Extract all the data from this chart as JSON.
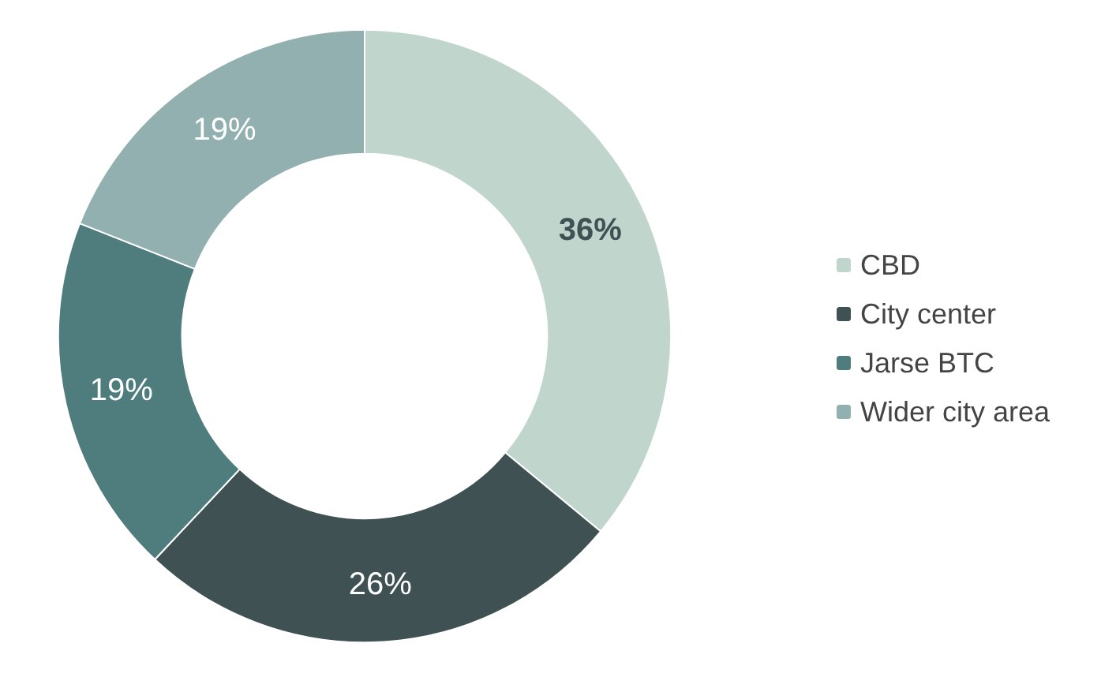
{
  "chart_data": {
    "type": "donut",
    "categories": [
      "CBD",
      "City center",
      "Jarse BTC",
      "Wider city area"
    ],
    "values": [
      36,
      26,
      19,
      19
    ],
    "colors": [
      "#c0d5cc",
      "#3f5153",
      "#4f7d7d",
      "#93b0b0"
    ],
    "value_labels": [
      "36%",
      "26%",
      "19%",
      "19%"
    ],
    "legend": "right"
  }
}
